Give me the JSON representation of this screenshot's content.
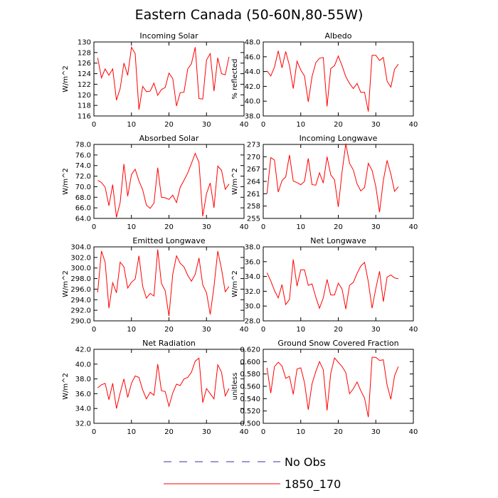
{
  "title": "Eastern Canada (50-60N,80-55W)",
  "legend": [
    {
      "label": "No Obs",
      "color": "#3333aa",
      "dashed": true
    },
    {
      "label": "1850_170",
      "color": "#ff0000",
      "dashed": false
    }
  ],
  "chart_data": [
    {
      "type": "line",
      "title": "Incoming Solar",
      "ylabel": "W/m^2",
      "xlim": [
        0,
        40
      ],
      "ylim": [
        116,
        130
      ],
      "xticks": [
        0,
        10,
        20,
        30,
        40
      ],
      "yticks": [
        116,
        118,
        120,
        122,
        124,
        126,
        128,
        130
      ],
      "ytick_labels": [
        "116",
        "118",
        "120",
        "122",
        "124",
        "126",
        "128",
        "130"
      ],
      "series": [
        {
          "name": "1850_170",
          "color": "#ff0000",
          "x": [
            1,
            2,
            3,
            4,
            5,
            6,
            7,
            8,
            9,
            10,
            11,
            12,
            13,
            14,
            15,
            16,
            17,
            18,
            19,
            20,
            21,
            22,
            23,
            24,
            25,
            26,
            27,
            28,
            29,
            30,
            31,
            32,
            33,
            34,
            35,
            36
          ],
          "values": [
            127.0,
            123.2,
            124.9,
            123.7,
            124.9,
            119.0,
            121.2,
            126.0,
            123.7,
            129.0,
            127.8,
            117.2,
            121.6,
            120.6,
            120.7,
            122.2,
            119.9,
            121.0,
            121.4,
            124.1,
            123.1,
            117.9,
            120.4,
            120.5,
            124.9,
            125.9,
            129.0,
            119.3,
            119.2,
            126.6,
            127.8,
            120.7,
            127.0,
            124.0,
            123.8,
            127.2
          ]
        }
      ]
    },
    {
      "type": "line",
      "title": "Albedo",
      "ylabel": "% reflected",
      "xlim": [
        0,
        40
      ],
      "ylim": [
        38,
        48
      ],
      "xticks": [
        0,
        10,
        20,
        30,
        40
      ],
      "yticks": [
        38,
        40,
        42,
        44,
        46,
        48
      ],
      "ytick_labels": [
        "38.0",
        "40.0",
        "42.0",
        "44.0",
        "46.0",
        "48.0"
      ],
      "series": [
        {
          "name": "1850_170",
          "color": "#ff0000",
          "x": [
            1,
            2,
            3,
            4,
            5,
            6,
            7,
            8,
            9,
            10,
            11,
            12,
            13,
            14,
            15,
            16,
            17,
            18,
            19,
            20,
            21,
            22,
            23,
            24,
            25,
            26,
            27,
            28,
            29,
            30,
            31,
            32,
            33,
            34,
            35,
            36
          ],
          "values": [
            44.1,
            43.4,
            44.6,
            46.8,
            44.5,
            46.7,
            44.8,
            41.7,
            45.4,
            44.2,
            43.4,
            39.9,
            43.3,
            45.2,
            45.8,
            45.9,
            39.3,
            44.4,
            44.8,
            46.1,
            44.8,
            43.3,
            42.4,
            41.7,
            42.4,
            41.2,
            41.2,
            38.6,
            46.2,
            46.2,
            45.5,
            45.9,
            42.7,
            41.9,
            44.3,
            45.0
          ]
        }
      ]
    },
    {
      "type": "line",
      "title": "Absorbed Solar",
      "ylabel": "W/m^2",
      "xlim": [
        0,
        40
      ],
      "ylim": [
        64,
        78
      ],
      "xticks": [
        0,
        10,
        20,
        30,
        40
      ],
      "yticks": [
        64,
        66,
        68,
        70,
        72,
        74,
        76,
        78
      ],
      "ytick_labels": [
        "64.0",
        "66.0",
        "68.0",
        "70.0",
        "72.0",
        "74.0",
        "76.0",
        "78.0"
      ],
      "series": [
        {
          "name": "1850_170",
          "color": "#ff0000",
          "x": [
            1,
            2,
            3,
            4,
            5,
            6,
            7,
            8,
            9,
            10,
            11,
            12,
            13,
            14,
            15,
            16,
            17,
            18,
            19,
            20,
            21,
            22,
            23,
            24,
            25,
            26,
            27,
            28,
            29,
            30,
            31,
            32,
            33,
            34,
            35,
            36
          ],
          "values": [
            71.2,
            70.8,
            69.9,
            66.4,
            70.4,
            64.2,
            67.0,
            74.3,
            68.2,
            72.3,
            73.3,
            71.1,
            69.4,
            66.5,
            65.9,
            66.9,
            73.6,
            68.0,
            67.9,
            67.6,
            68.4,
            67.0,
            69.9,
            71.2,
            72.6,
            74.4,
            76.3,
            74.6,
            64.4,
            68.7,
            70.7,
            66.0,
            73.9,
            73.1,
            69.5,
            70.5
          ]
        }
      ]
    },
    {
      "type": "line",
      "title": "Incoming Longwave",
      "ylabel": "W/m^2",
      "xlim": [
        0,
        40
      ],
      "ylim": [
        255,
        273
      ],
      "xticks": [
        0,
        10,
        20,
        30,
        40
      ],
      "yticks": [
        255,
        258,
        261,
        264,
        267,
        270,
        273
      ],
      "ytick_labels": [
        "255",
        "258",
        "261",
        "264",
        "267",
        "270",
        "273"
      ],
      "series": [
        {
          "name": "1850_170",
          "color": "#ff0000",
          "x": [
            1,
            2,
            3,
            4,
            5,
            6,
            7,
            8,
            9,
            10,
            11,
            12,
            13,
            14,
            15,
            16,
            17,
            18,
            19,
            20,
            21,
            22,
            23,
            24,
            25,
            26,
            27,
            28,
            29,
            30,
            31,
            32,
            33,
            34,
            35,
            36
          ],
          "values": [
            261.0,
            269.8,
            269.2,
            261.4,
            264.2,
            265.1,
            270.4,
            264.1,
            263.7,
            263.2,
            264.0,
            269.6,
            263.2,
            263.1,
            266.1,
            263.6,
            270.0,
            265.6,
            264.4,
            257.8,
            266.3,
            273.2,
            268.4,
            266.8,
            263.4,
            261.7,
            262.5,
            268.4,
            266.7,
            262.7,
            256.5,
            264.2,
            269.1,
            265.8,
            261.6,
            262.7
          ]
        }
      ]
    },
    {
      "type": "line",
      "title": "Emitted Longwave",
      "ylabel": "W/m^2",
      "xlim": [
        0,
        40
      ],
      "ylim": [
        290,
        304
      ],
      "xticks": [
        0,
        10,
        20,
        30,
        40
      ],
      "yticks": [
        290,
        292,
        294,
        296,
        298,
        300,
        302,
        304
      ],
      "ytick_labels": [
        "290.0",
        "292.0",
        "294.0",
        "296.0",
        "298.0",
        "300.0",
        "302.0",
        "304.0"
      ],
      "series": [
        {
          "name": "1850_170",
          "color": "#ff0000",
          "x": [
            1,
            2,
            3,
            4,
            5,
            6,
            7,
            8,
            9,
            10,
            11,
            12,
            13,
            14,
            15,
            16,
            17,
            18,
            19,
            20,
            21,
            22,
            23,
            24,
            25,
            26,
            27,
            28,
            29,
            30,
            31,
            32,
            33,
            34,
            35,
            36
          ],
          "values": [
            295.4,
            303.2,
            301.1,
            292.4,
            297.2,
            295.3,
            301.1,
            300.2,
            296.2,
            297.3,
            297.9,
            302.3,
            296.5,
            294.3,
            295.2,
            294.7,
            303.5,
            297.1,
            295.7,
            290.9,
            298.8,
            302.3,
            300.9,
            300.2,
            298.6,
            297.5,
            298.8,
            301.9,
            296.8,
            295.3,
            291.2,
            296.5,
            303.2,
            299.8,
            295.5,
            296.5
          ]
        }
      ]
    },
    {
      "type": "line",
      "title": "Net Longwave",
      "ylabel": "W/m^2",
      "xlim": [
        0,
        40
      ],
      "ylim": [
        28,
        38
      ],
      "xticks": [
        0,
        10,
        20,
        30,
        40
      ],
      "yticks": [
        28,
        30,
        32,
        34,
        36,
        38
      ],
      "ytick_labels": [
        "28.0",
        "30.0",
        "32.0",
        "34.0",
        "36.0",
        "38.0"
      ],
      "series": [
        {
          "name": "1850_170",
          "color": "#ff0000",
          "x": [
            1,
            2,
            3,
            4,
            5,
            6,
            7,
            8,
            9,
            10,
            11,
            12,
            13,
            14,
            15,
            16,
            17,
            18,
            19,
            20,
            21,
            22,
            23,
            24,
            25,
            26,
            27,
            28,
            29,
            30,
            31,
            32,
            33,
            34,
            35,
            36
          ],
          "values": [
            34.5,
            33.4,
            32.1,
            31.1,
            32.9,
            30.2,
            30.9,
            36.3,
            32.7,
            34.9,
            34.9,
            32.8,
            33.0,
            31.2,
            29.7,
            31.1,
            33.6,
            31.5,
            31.5,
            33.1,
            32.3,
            29.6,
            32.8,
            33.2,
            34.4,
            35.4,
            35.9,
            33.3,
            29.7,
            32.4,
            34.7,
            30.6,
            33.9,
            34.2,
            33.8,
            33.7
          ]
        }
      ]
    },
    {
      "type": "line",
      "title": "Net Radiation",
      "ylabel": "W/m^2",
      "xlim": [
        0,
        40
      ],
      "ylim": [
        32,
        42
      ],
      "xticks": [
        0,
        10,
        20,
        30,
        40
      ],
      "yticks": [
        32,
        34,
        36,
        38,
        40,
        42
      ],
      "ytick_labels": [
        "32.0",
        "34.0",
        "36.0",
        "38.0",
        "40.0",
        "42.0"
      ],
      "series": [
        {
          "name": "1850_170",
          "color": "#ff0000",
          "x": [
            1,
            2,
            3,
            4,
            5,
            6,
            7,
            8,
            9,
            10,
            11,
            12,
            13,
            14,
            15,
            16,
            17,
            18,
            19,
            20,
            21,
            22,
            23,
            24,
            25,
            26,
            27,
            28,
            29,
            30,
            31,
            32,
            33,
            34,
            35,
            36
          ],
          "values": [
            36.8,
            37.2,
            37.4,
            35.2,
            37.4,
            34.0,
            36.1,
            38.0,
            35.5,
            37.4,
            38.4,
            38.2,
            36.5,
            35.3,
            36.2,
            35.8,
            40.0,
            36.4,
            36.3,
            34.3,
            36.1,
            37.3,
            37.1,
            38.0,
            38.2,
            38.9,
            40.4,
            40.8,
            34.8,
            36.7,
            36.0,
            35.3,
            39.9,
            38.9,
            35.7,
            36.7
          ]
        }
      ]
    },
    {
      "type": "line",
      "title": "Ground Snow Covered Fraction",
      "ylabel": "unitless",
      "xlim": [
        0,
        40
      ],
      "ylim": [
        0.5,
        0.62
      ],
      "xticks": [
        0,
        10,
        20,
        30,
        40
      ],
      "yticks": [
        0.5,
        0.52,
        0.54,
        0.56,
        0.58,
        0.6,
        0.62
      ],
      "ytick_labels": [
        "0.500",
        "0.520",
        "0.540",
        "0.560",
        "0.580",
        "0.600",
        "0.620"
      ],
      "series": [
        {
          "name": "1850_170",
          "color": "#ff0000",
          "x": [
            1,
            2,
            3,
            4,
            5,
            6,
            7,
            8,
            9,
            10,
            11,
            12,
            13,
            14,
            15,
            16,
            17,
            18,
            19,
            20,
            21,
            22,
            23,
            24,
            25,
            26,
            27,
            28,
            29,
            30,
            31,
            32,
            33,
            34,
            35,
            36
          ],
          "values": [
            0.59,
            0.549,
            0.592,
            0.599,
            0.593,
            0.573,
            0.576,
            0.547,
            0.588,
            0.59,
            0.566,
            0.522,
            0.564,
            0.584,
            0.6,
            0.587,
            0.521,
            0.581,
            0.606,
            0.599,
            0.592,
            0.582,
            0.548,
            0.556,
            0.567,
            0.553,
            0.541,
            0.51,
            0.607,
            0.607,
            0.602,
            0.603,
            0.562,
            0.539,
            0.577,
            0.592
          ]
        }
      ]
    }
  ]
}
